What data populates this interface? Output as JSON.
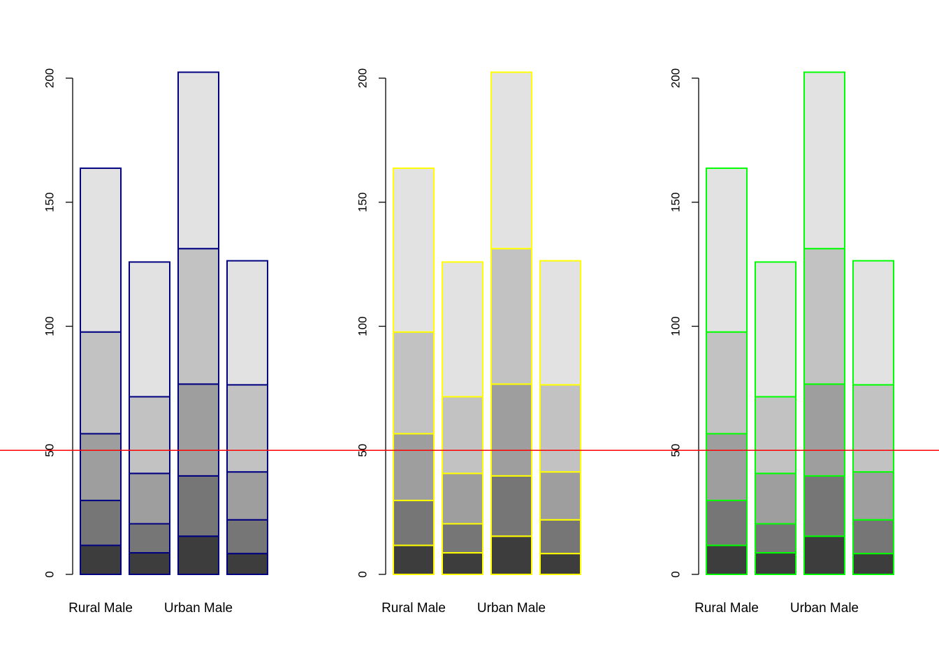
{
  "chart_data": {
    "type": "bar",
    "stacked": true,
    "panels": [
      {
        "border_color": "#000080",
        "categories": [
          "Rural Male",
          "",
          "Urban Male",
          ""
        ],
        "category_labels_shown": [
          "Rural Male",
          "Urban Male"
        ],
        "series": [
          {
            "values": [
              11.7,
              8.7,
              15.4,
              8.4
            ]
          },
          {
            "values": [
              18.1,
              11.7,
              24.3,
              13.6
            ]
          },
          {
            "values": [
              26.9,
              20.3,
              37.0,
              19.3
            ]
          },
          {
            "values": [
              41.0,
              30.9,
              54.6,
              35.1
            ]
          },
          {
            "values": [
              66.0,
              54.3,
              71.1,
              50.0
            ]
          }
        ],
        "ylim": [
          0,
          200
        ],
        "yticks": [
          0,
          50,
          100,
          150,
          200
        ]
      },
      {
        "border_color": "#FFFF00",
        "categories": [
          "Rural Male",
          "",
          "Urban Male",
          ""
        ],
        "category_labels_shown": [
          "Rural Male",
          "Urban Male"
        ],
        "series": [
          {
            "values": [
              11.7,
              8.7,
              15.4,
              8.4
            ]
          },
          {
            "values": [
              18.1,
              11.7,
              24.3,
              13.6
            ]
          },
          {
            "values": [
              26.9,
              20.3,
              37.0,
              19.3
            ]
          },
          {
            "values": [
              41.0,
              30.9,
              54.6,
              35.1
            ]
          },
          {
            "values": [
              66.0,
              54.3,
              71.1,
              50.0
            ]
          }
        ],
        "ylim": [
          0,
          200
        ],
        "yticks": [
          0,
          50,
          100,
          150,
          200
        ]
      },
      {
        "border_color": "#00FF00",
        "categories": [
          "Rural Male",
          "",
          "Urban Male",
          ""
        ],
        "category_labels_shown": [
          "Rural Male",
          "Urban Male"
        ],
        "series": [
          {
            "values": [
              11.7,
              8.7,
              15.4,
              8.4
            ]
          },
          {
            "values": [
              18.1,
              11.7,
              24.3,
              13.6
            ]
          },
          {
            "values": [
              26.9,
              20.3,
              37.0,
              19.3
            ]
          },
          {
            "values": [
              41.0,
              30.9,
              54.6,
              35.1
            ]
          },
          {
            "values": [
              66.0,
              54.3,
              71.1,
              50.0
            ]
          }
        ],
        "ylim": [
          0,
          200
        ],
        "yticks": [
          0,
          50,
          100,
          150,
          200
        ]
      }
    ],
    "segment_fills": [
      "#3D3D3D",
      "#767676",
      "#9E9E9E",
      "#C2C2C2",
      "#E2E2E2"
    ],
    "reference_line": {
      "y": 50,
      "color": "#FF0000"
    },
    "grid": false,
    "legend": "none"
  }
}
